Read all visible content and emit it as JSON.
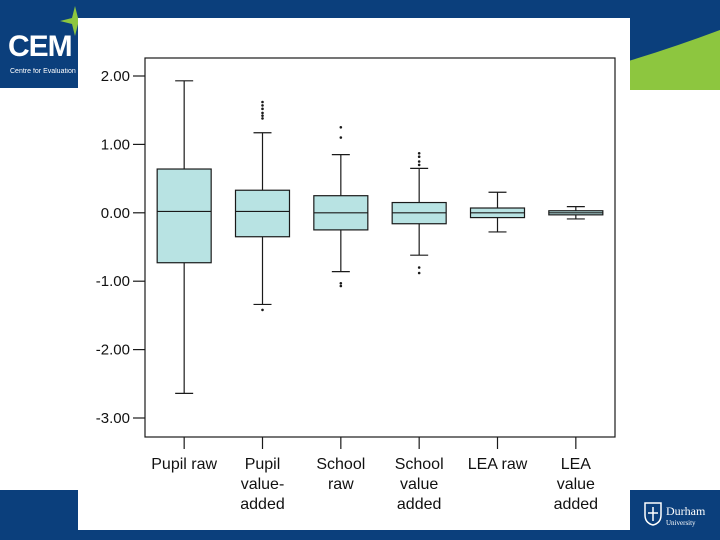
{
  "branding": {
    "cem_logo_text": "CEM",
    "cem_subtitle": "Centre for Evaluation",
    "university_name": "Durham",
    "university_sub": "University"
  },
  "colors": {
    "band": "#0b3f7c",
    "accent_green": "#8dc63f",
    "box_fill": "#b8e3e3",
    "stroke": "#1a1a1a"
  },
  "chart_data": {
    "type": "boxplot",
    "title": "",
    "xlabel": "",
    "ylabel": "",
    "ylim": [
      -3.3,
      2.2
    ],
    "yticks": [
      2.0,
      1.0,
      0.0,
      -1.0,
      -2.0,
      -3.0
    ],
    "ytick_labels": [
      "2.00",
      "1.00",
      "0.00",
      "-1.00",
      "-2.00",
      "-3.00"
    ],
    "grid": false,
    "legend": "none",
    "categories": [
      [
        "Pupil raw"
      ],
      [
        "Pupil",
        "value-",
        "added"
      ],
      [
        "School",
        "raw"
      ],
      [
        "School",
        "value",
        "added"
      ],
      [
        "LEA raw"
      ],
      [
        "LEA",
        "value",
        "added"
      ]
    ],
    "boxes": [
      {
        "min": -2.64,
        "q1": -0.73,
        "median": 0.02,
        "q3": 0.64,
        "max": 1.93,
        "outliers": []
      },
      {
        "min": -1.34,
        "q1": -0.35,
        "median": 0.02,
        "q3": 0.33,
        "max": 1.17,
        "outliers": [
          1.38,
          1.42,
          1.46,
          1.52,
          1.57,
          1.62,
          -1.42
        ]
      },
      {
        "min": -0.86,
        "q1": -0.25,
        "median": 0.0,
        "q3": 0.25,
        "max": 0.85,
        "outliers": [
          1.25,
          1.1,
          -1.03,
          -1.07
        ]
      },
      {
        "min": -0.62,
        "q1": -0.16,
        "median": 0.0,
        "q3": 0.15,
        "max": 0.65,
        "outliers": [
          0.7,
          0.75,
          0.82,
          0.87,
          -0.8,
          -0.88
        ]
      },
      {
        "min": -0.28,
        "q1": -0.07,
        "median": 0.0,
        "q3": 0.07,
        "max": 0.3,
        "outliers": []
      },
      {
        "min": -0.09,
        "q1": -0.03,
        "median": 0.0,
        "q3": 0.03,
        "max": 0.09,
        "outliers": []
      }
    ]
  }
}
